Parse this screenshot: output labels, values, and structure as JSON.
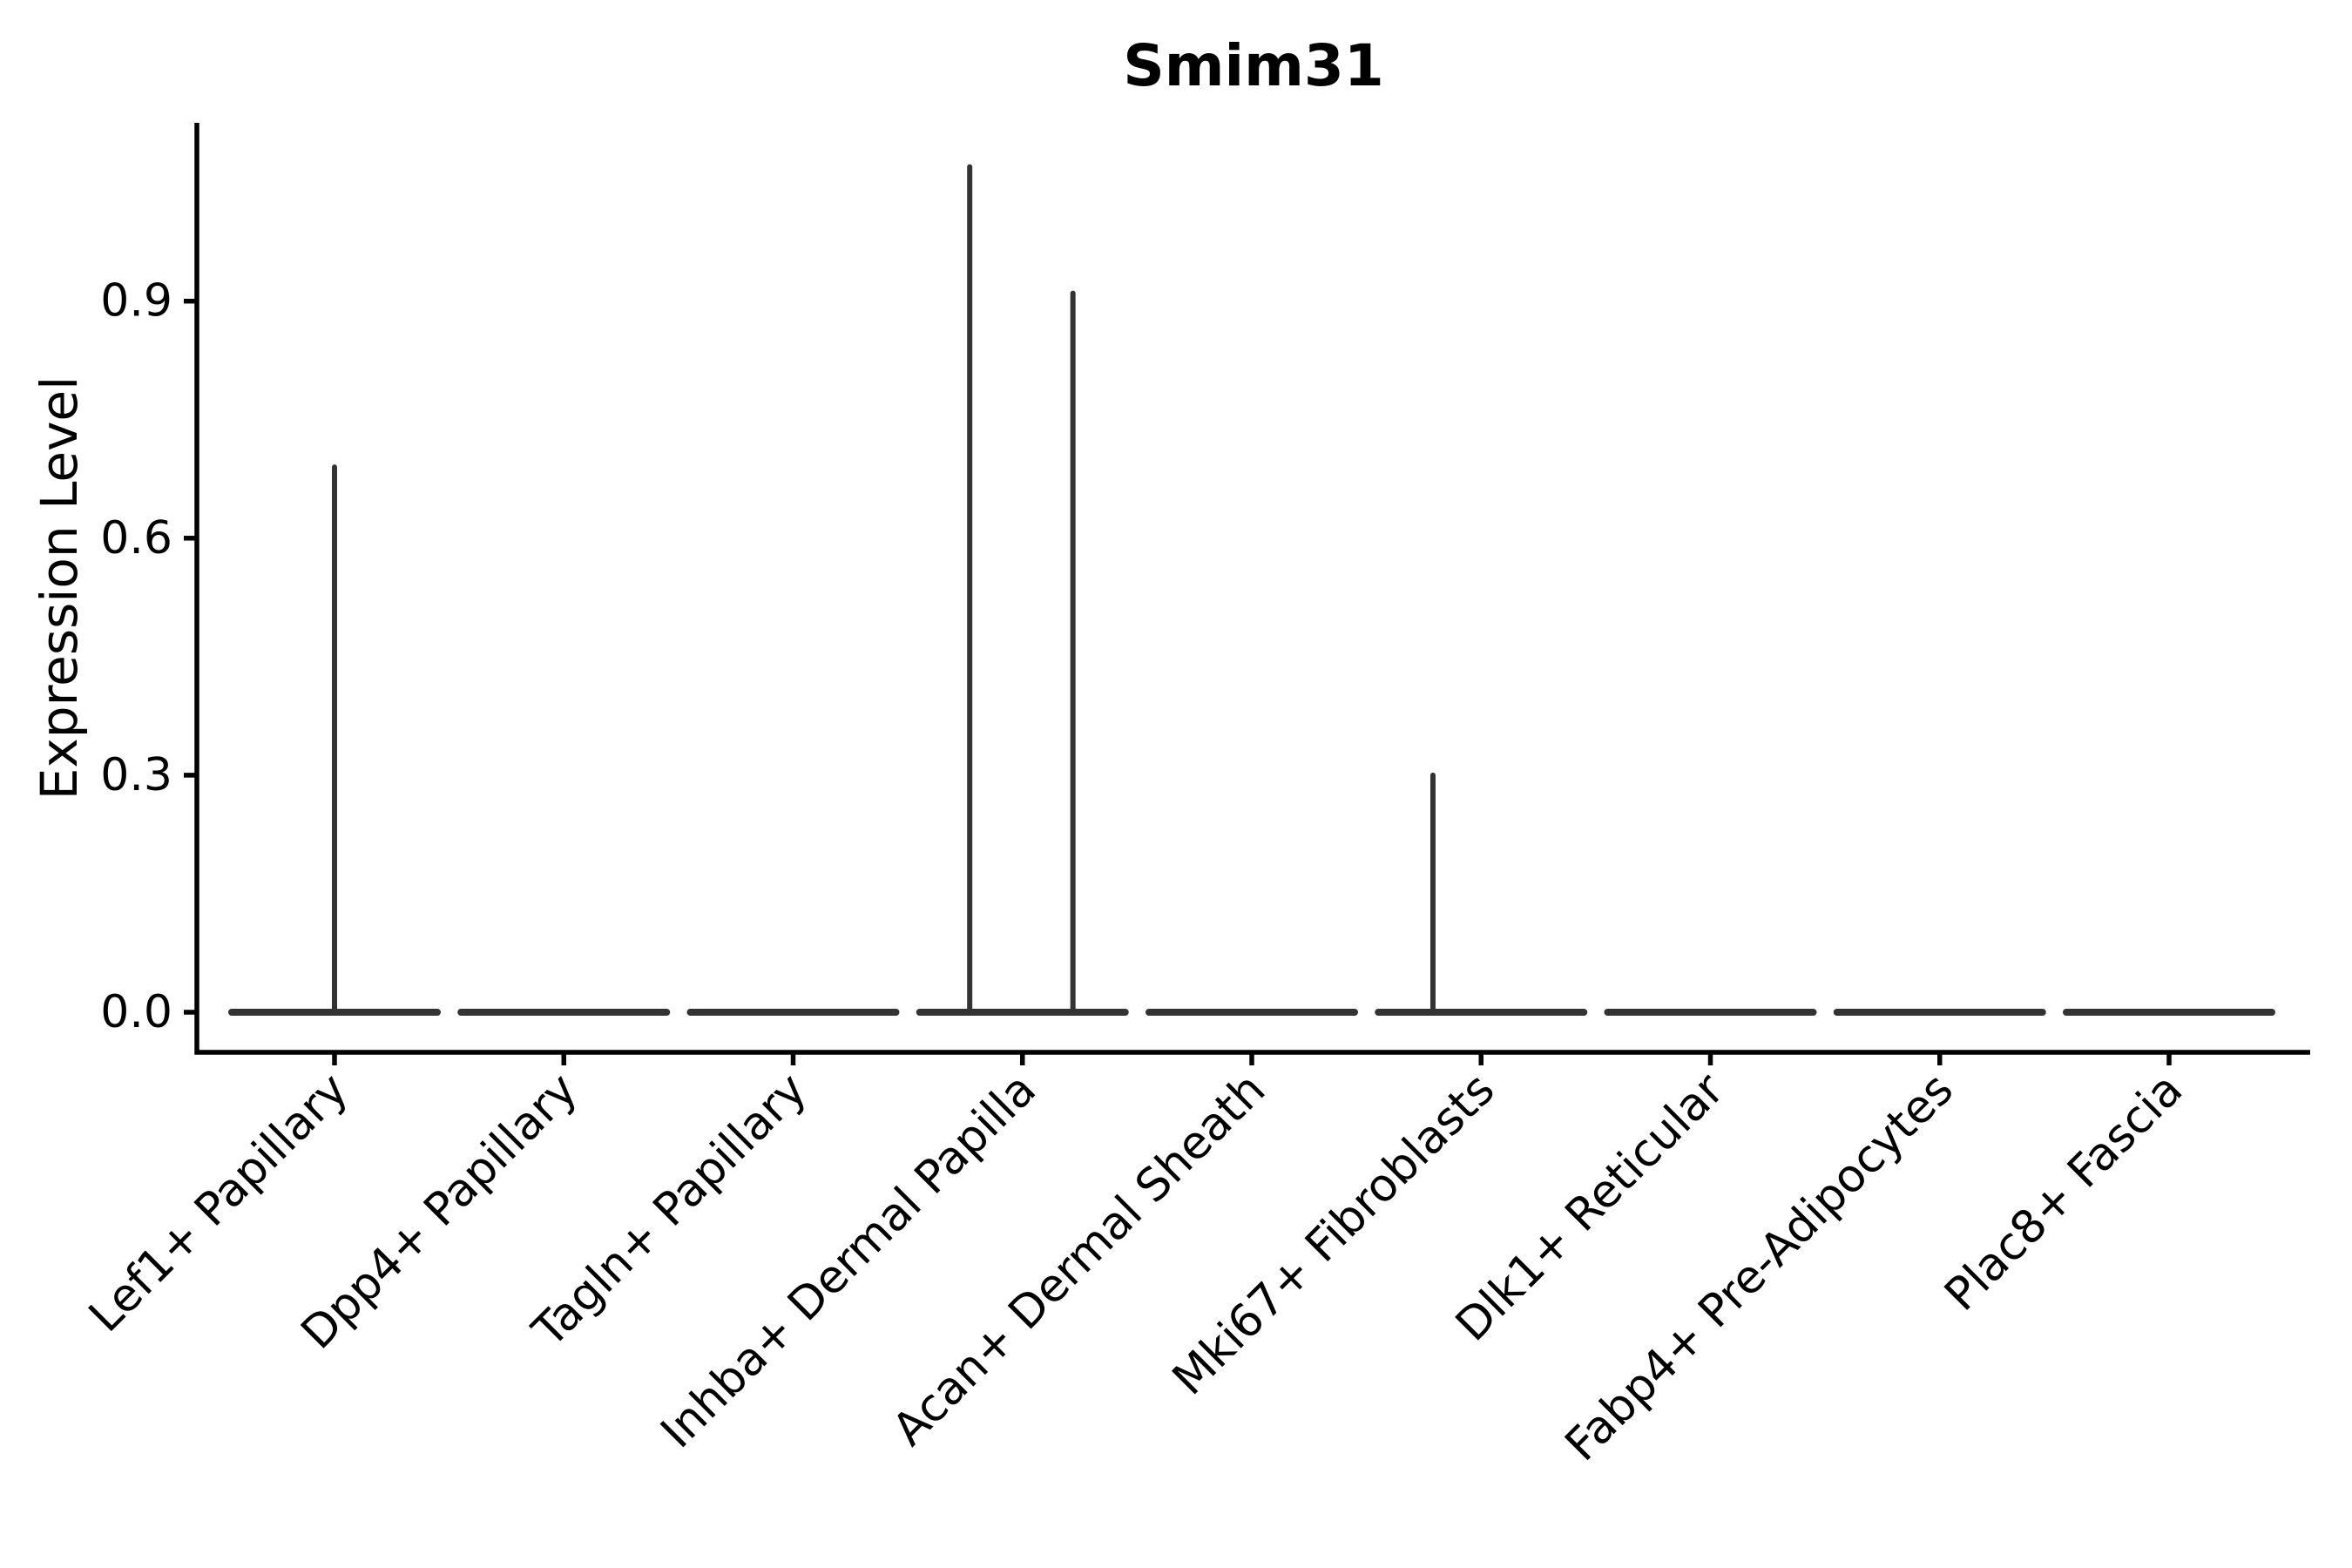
{
  "chart_data": {
    "type": "violin",
    "title": "Smim31",
    "xlabel": "",
    "ylabel": "Expression Level",
    "background_color": "#ffffff",
    "violin_color": "#333333",
    "axis_color": "#000000",
    "text_color": "#000000",
    "grid": false,
    "legend": false,
    "ylim": [
      -0.05,
      1.13
    ],
    "y_ticks": [
      {
        "value": 0.0,
        "label": "0.0"
      },
      {
        "value": 0.3,
        "label": "0.3"
      },
      {
        "value": 0.6,
        "label": "0.6"
      },
      {
        "value": 0.9,
        "label": "0.9"
      }
    ],
    "x_tick_rotation_degrees": 45,
    "categories": [
      "Lef1+ Papillary",
      "Dpp4+ Papillary",
      "Tagln+ Papillary",
      "Inhba+ Dermal Papilla",
      "Acan+ Dermal Sheath",
      "Mki67+ Fibroblasts",
      "Dlk1+ Reticular",
      "Fabp4+ Pre-Adipocytes",
      "Plac8+ Fascia"
    ],
    "violins": [
      {
        "category": "Lef1+ Papillary",
        "baseline_value": 0.0,
        "spikes": [
          {
            "value": 0.69,
            "x_offset": 0.0
          }
        ]
      },
      {
        "category": "Dpp4+ Papillary",
        "baseline_value": 0.0,
        "spikes": []
      },
      {
        "category": "Tagln+ Papillary",
        "baseline_value": 0.0,
        "spikes": []
      },
      {
        "category": "Inhba+ Dermal Papilla",
        "baseline_value": 0.0,
        "spikes": [
          {
            "value": 1.07,
            "x_offset": -0.23
          },
          {
            "value": 0.91,
            "x_offset": 0.22
          }
        ]
      },
      {
        "category": "Acan+ Dermal Sheath",
        "baseline_value": 0.0,
        "spikes": []
      },
      {
        "category": "Mki67+ Fibroblasts",
        "baseline_value": 0.0,
        "spikes": [
          {
            "value": 0.3,
            "x_offset": -0.21
          }
        ]
      },
      {
        "category": "Dlk1+ Reticular",
        "baseline_value": 0.0,
        "spikes": []
      },
      {
        "category": "Fabp4+ Pre-Adipocytes",
        "baseline_value": 0.0,
        "spikes": []
      },
      {
        "category": "Plac8+ Fascia",
        "baseline_value": 0.0,
        "spikes": []
      }
    ]
  }
}
